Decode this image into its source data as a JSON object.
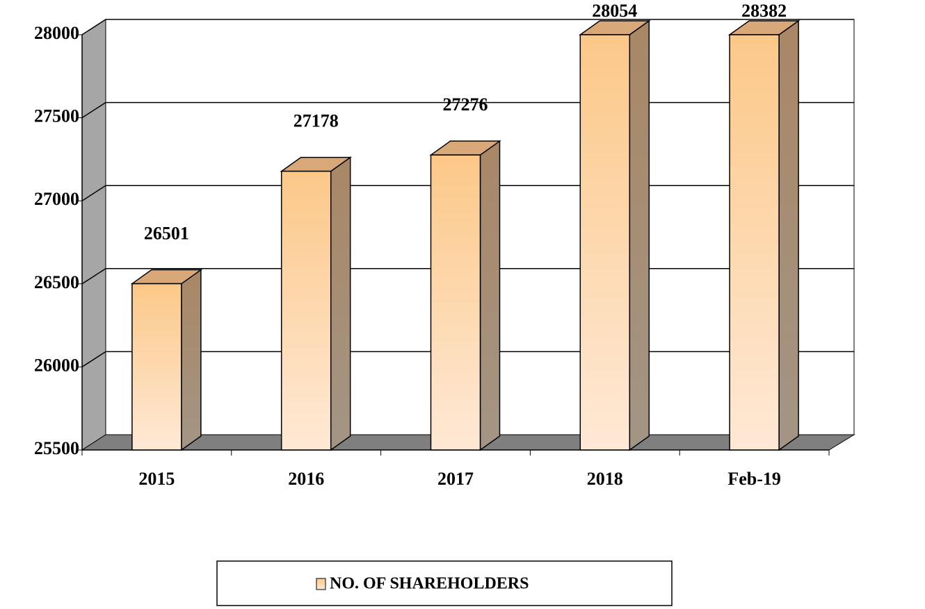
{
  "chart_data": {
    "type": "bar3d",
    "categories": [
      "2015",
      "2016",
      "2017",
      "2018",
      "Feb-19"
    ],
    "series": [
      {
        "name": "NO. OF SHAREHOLDERS",
        "color": "#fcc88a",
        "values": [
          26501,
          27178,
          27276,
          28054,
          28382
        ]
      }
    ],
    "ylim": [
      25500,
      28000
    ],
    "yticks": [
      25500,
      26000,
      26500,
      27000,
      27500,
      28000
    ],
    "grid": true,
    "legend": "bottom"
  }
}
